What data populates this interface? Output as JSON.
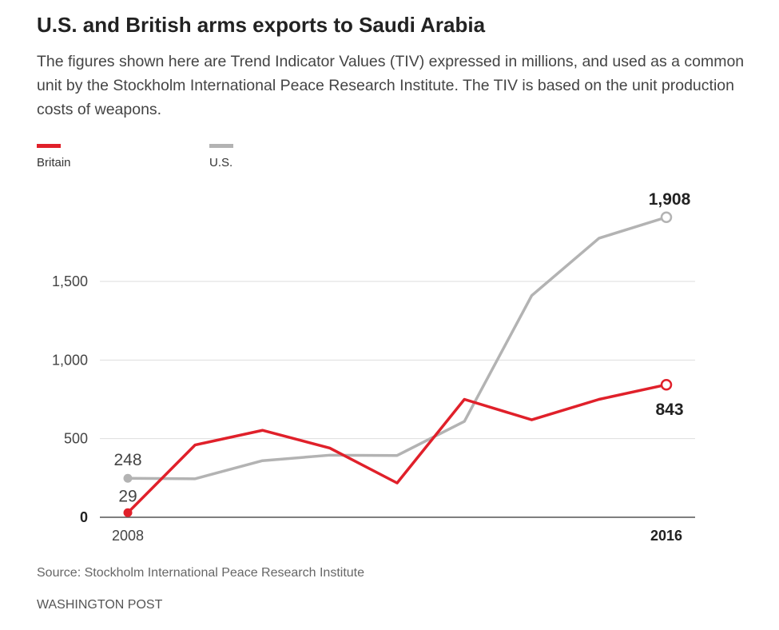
{
  "header": {
    "title": "U.S. and British arms exports to Saudi Arabia",
    "subtitle": "The figures shown here are Trend Indicator Values (TIV) expressed in millions, and used as a common unit by the Stockholm International Peace Research Institute. The TIV is based on the unit production costs of weapons."
  },
  "legend": [
    {
      "label": "Britain",
      "color": "#e0202a"
    },
    {
      "label": "U.S.",
      "color": "#b3b3b3"
    }
  ],
  "chart_data": {
    "type": "line",
    "title": "U.S. and British arms exports to Saudi Arabia",
    "xlabel": "",
    "ylabel": "",
    "x": [
      2008,
      2009,
      2010,
      2011,
      2012,
      2013,
      2014,
      2015,
      2016
    ],
    "series": [
      {
        "name": "Britain",
        "color": "#e0202a",
        "values": [
          29,
          460,
          553,
          440,
          218,
          750,
          620,
          750,
          843
        ]
      },
      {
        "name": "U.S.",
        "color": "#b3b3b3",
        "values": [
          248,
          245,
          360,
          395,
          393,
          610,
          1410,
          1775,
          1908
        ]
      }
    ],
    "ylim": [
      0,
      2000
    ],
    "yticks": [
      0,
      500,
      1000,
      1500
    ],
    "ytick_labels": [
      "0",
      "500",
      "1,000",
      "1,500"
    ],
    "xtick_labels": [
      "2008",
      "2016"
    ],
    "annotations": [
      {
        "series": "U.S.",
        "x": 2008,
        "text": "248"
      },
      {
        "series": "Britain",
        "x": 2008,
        "text": "29"
      },
      {
        "series": "U.S.",
        "x": 2016,
        "text": "1,908"
      },
      {
        "series": "Britain",
        "x": 2016,
        "text": "843"
      }
    ],
    "grid": true,
    "legend_position": "top-left"
  },
  "footer": {
    "source": "Source: Stockholm International Peace Research Institute",
    "credit": "WASHINGTON POST"
  }
}
